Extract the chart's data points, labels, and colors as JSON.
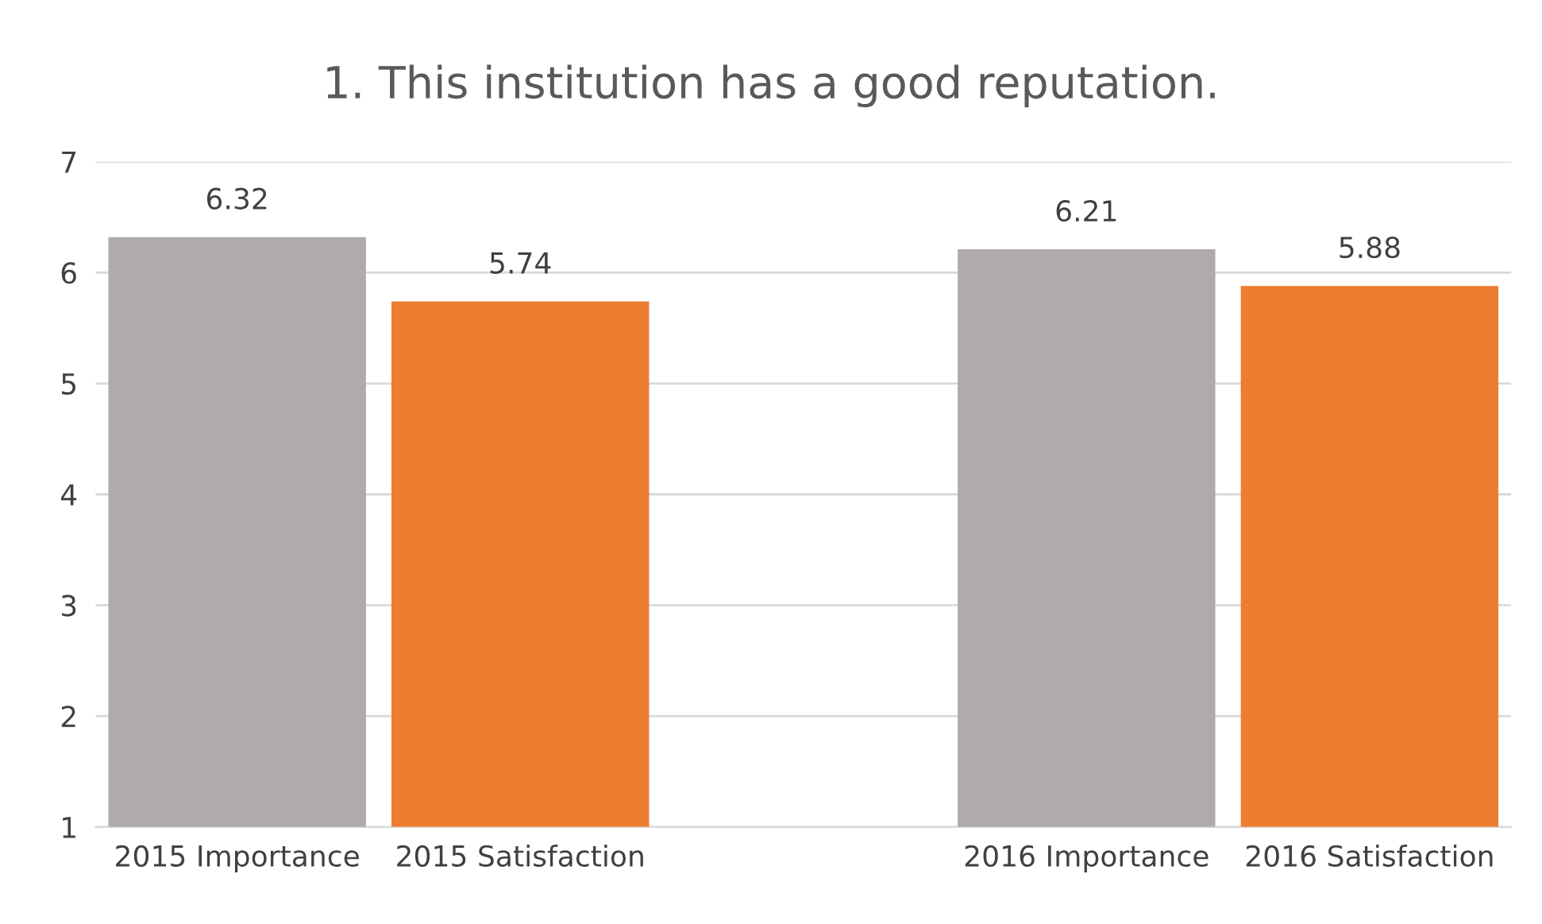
{
  "chart_data": {
    "type": "bar",
    "title": "1. This institution has a good reputation.",
    "categories": [
      "2015 Importance",
      "2015 Satisfaction",
      null,
      "2016 Importance",
      "2016 Satisfaction"
    ],
    "values": [
      6.32,
      5.74,
      null,
      6.21,
      5.88
    ],
    "colors": [
      "#afabab",
      "#ed7d31",
      "#afabab",
      "#afabab",
      "#ed7d31"
    ],
    "ylim": [
      1,
      7
    ],
    "yticks": [
      1,
      2,
      3,
      4,
      5,
      6,
      7
    ],
    "grid": "y",
    "data_labels": true,
    "legend": false
  }
}
